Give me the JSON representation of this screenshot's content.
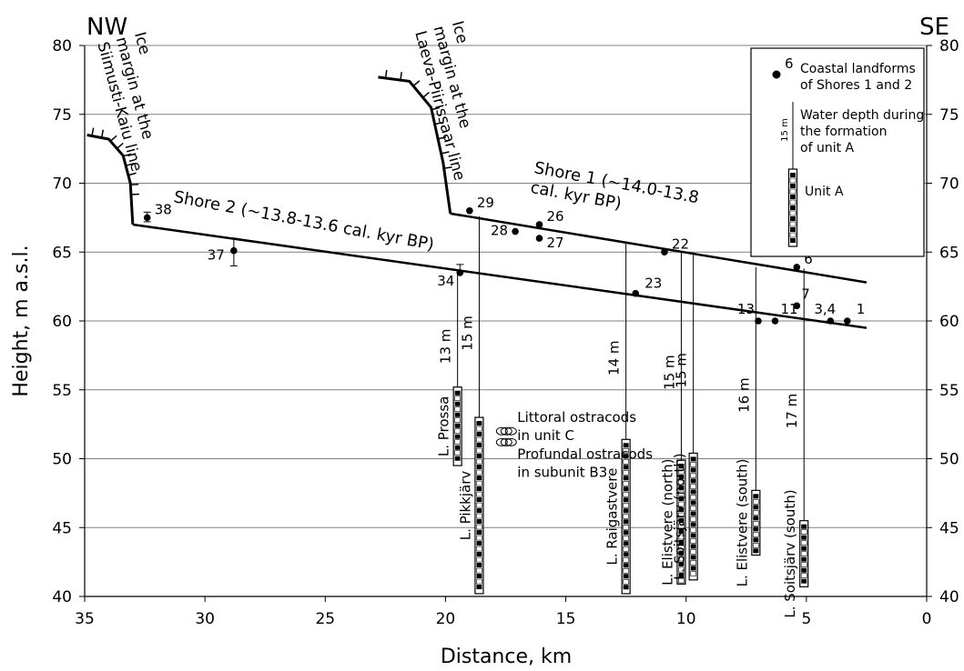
{
  "chart_data": {
    "type": "scatter",
    "corner_left": "NW",
    "corner_right": "SE",
    "xlabel": "Distance, km",
    "ylabel": "Height, m a.s.l.",
    "xlim": [
      35,
      0
    ],
    "ylim": [
      40,
      80
    ],
    "x_reversed": true,
    "grid": "horizontal",
    "x_ticks": [
      35,
      30,
      25,
      20,
      15,
      10,
      5,
      0
    ],
    "y_ticks": [
      40,
      45,
      50,
      55,
      60,
      65,
      70,
      75,
      80
    ],
    "shores": [
      {
        "name": "Shore 1 (~14.0-13.8 cal. kyr BP)",
        "line1": "Shore 1 (~14.0-13.8",
        "line2": "cal. kyr BP)",
        "x": [
          19.8,
          2.5
        ],
        "y": [
          67.8,
          62.8
        ]
      },
      {
        "name": "Shore 2 (~13.8-13.6 cal. kyr BP)",
        "label": "Shore 2 (~13.8-13.6 cal. kyr BP)",
        "x": [
          33.0,
          2.5
        ],
        "y": [
          67.0,
          59.5
        ]
      }
    ],
    "points": [
      {
        "label": "38",
        "x": 32.4,
        "y": 67.5,
        "err_low": 0.3,
        "err_high": 0.4
      },
      {
        "label": "37",
        "x": 28.8,
        "y": 65.1,
        "err_low": 1.1,
        "err_high": 0.9
      },
      {
        "label": "34",
        "x": 19.4,
        "y": 63.5,
        "err_low": 0.0,
        "err_high": 0.6
      },
      {
        "label": "29",
        "x": 19.0,
        "y": 68.0
      },
      {
        "label": "28",
        "x": 17.1,
        "y": 66.5
      },
      {
        "label": "26",
        "x": 16.1,
        "y": 67.0
      },
      {
        "label": "27",
        "x": 16.1,
        "y": 66.0
      },
      {
        "label": "23",
        "x": 12.1,
        "y": 62.0
      },
      {
        "label": "22",
        "x": 10.9,
        "y": 65.0
      },
      {
        "label": "13",
        "x": 7.0,
        "y": 60.0
      },
      {
        "label": "11",
        "x": 6.3,
        "y": 60.0
      },
      {
        "label": "6",
        "x": 5.4,
        "y": 63.9
      },
      {
        "label": "7",
        "x": 5.4,
        "y": 61.1
      },
      {
        "label": "3,4",
        "x": 4.0,
        "y": 60.0
      },
      {
        "label": "1",
        "x": 3.3,
        "y": 60.0
      }
    ],
    "ice_margins": [
      {
        "label_line1": "Ice",
        "label_line2": "margin at the",
        "label_line3": "Siimusti-Kaiu line",
        "x": [
          34.9,
          34.0,
          33.4,
          33.1,
          33.0
        ],
        "y": [
          73.5,
          73.2,
          72.0,
          70.0,
          67.0
        ]
      },
      {
        "label_line1": "Ice",
        "label_line2": "margin at the",
        "label_line3": "Laeva-Piirissaar line",
        "x": [
          22.8,
          21.5,
          20.6,
          20.1,
          19.8
        ],
        "y": [
          77.7,
          77.4,
          75.5,
          71.5,
          67.8
        ]
      }
    ],
    "cores": [
      {
        "name": "L. Prossa",
        "x": 19.5,
        "bottom": 49.5,
        "top": 55.2,
        "depth": "13 m",
        "water_top": 63.5
      },
      {
        "name": "L. Pikkjärv",
        "x": 18.6,
        "bottom": 40.2,
        "top": 53.0,
        "depth": "15 m",
        "water_top": 67.6
      },
      {
        "name": "L. Raigastvere",
        "x": 12.5,
        "bottom": 40.2,
        "top": 51.4,
        "depth": "14 m",
        "water_top": 65.6
      },
      {
        "name": "L. Elistvere (north)",
        "x": 10.2,
        "bottom": 40.9,
        "top": 49.9,
        "depth": "15 m",
        "water_top": 65.0
      },
      {
        "name": "L. Soitsjärv (north)",
        "x": 9.7,
        "bottom": 41.2,
        "top": 50.4,
        "depth": "15 m",
        "water_top": 64.8
      },
      {
        "name": "L. Elistvere (south)",
        "x": 7.1,
        "bottom": 43.0,
        "top": 47.7,
        "depth": "16 m",
        "water_top": 63.9
      },
      {
        "name": "L. Soitsjärv (south)",
        "x": 5.1,
        "bottom": 40.7,
        "top": 45.5,
        "depth": "17 m",
        "water_top": 63.8
      }
    ],
    "ostracod_annotations": [
      {
        "line1": "Littoral ostracods",
        "line2": "in unit C",
        "x": 18.0,
        "y": 52.0
      },
      {
        "line1": "Profundal ostracods",
        "line2": "in subunit B3",
        "x": 18.0,
        "y": 51.2
      }
    ],
    "legend": {
      "position": "top-right",
      "point_sample": "6",
      "point_line1": "Coastal landforms",
      "point_line2": "of Shores 1 and 2",
      "depth_sample": "15 m",
      "depth_line1": "Water depth during",
      "depth_line2": "the formation",
      "depth_line3": "of unit A",
      "unit_label": "Unit A"
    }
  }
}
